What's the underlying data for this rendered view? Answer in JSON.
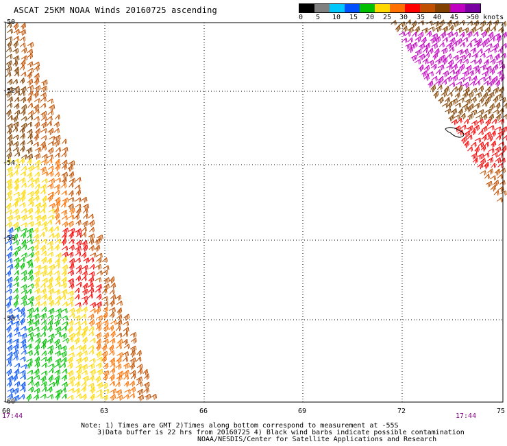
{
  "header": {
    "title": "ASCAT 25KM NOAA Winds 20160725 ascending"
  },
  "legend": {
    "tick_labels": [
      "0",
      "5",
      "10",
      "15",
      "20",
      "25",
      "30",
      "35",
      "40",
      "45",
      ">50 knots"
    ],
    "colors": [
      "#000000",
      "#808080",
      "#00c8ff",
      "#0050ff",
      "#00c000",
      "#ffd800",
      "#ff7000",
      "#ff0000",
      "#c05000",
      "#804000",
      "#c000c0",
      "#7800a0"
    ]
  },
  "axes": {
    "lat_labels": [
      "-50",
      "-52",
      "-54",
      "-56",
      "-58",
      "-60"
    ],
    "lon_labels": [
      "60",
      "63",
      "66",
      "69",
      "72",
      "75"
    ]
  },
  "times": {
    "left": "17:44",
    "right": "17:44"
  },
  "notes": {
    "line1": "Note: 1) Times are GMT 2)Times along bottom correspond to measurement at -55S",
    "line2": "3)Data buffer is 22 hrs from 20160725 4) Black wind barbs indicate possible contamination",
    "line3": "NOAA/NESDIS/Center for Satellite Applications and Research"
  }
}
